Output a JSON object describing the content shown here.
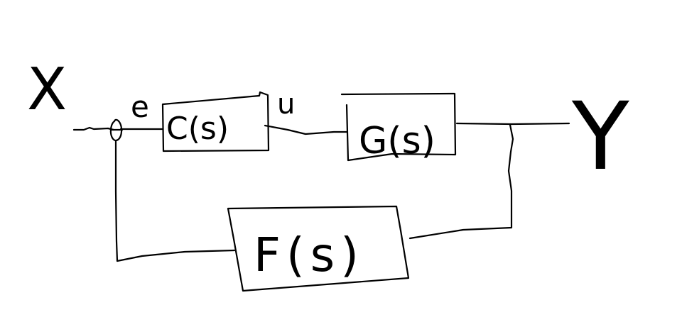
{
  "diagram": {
    "input_label": "X",
    "output_label": "Y",
    "error_label": "e",
    "control_label": "u",
    "blocks": {
      "controller": "C(s)",
      "plant": "G(s)",
      "feedback": "F(s)"
    }
  }
}
